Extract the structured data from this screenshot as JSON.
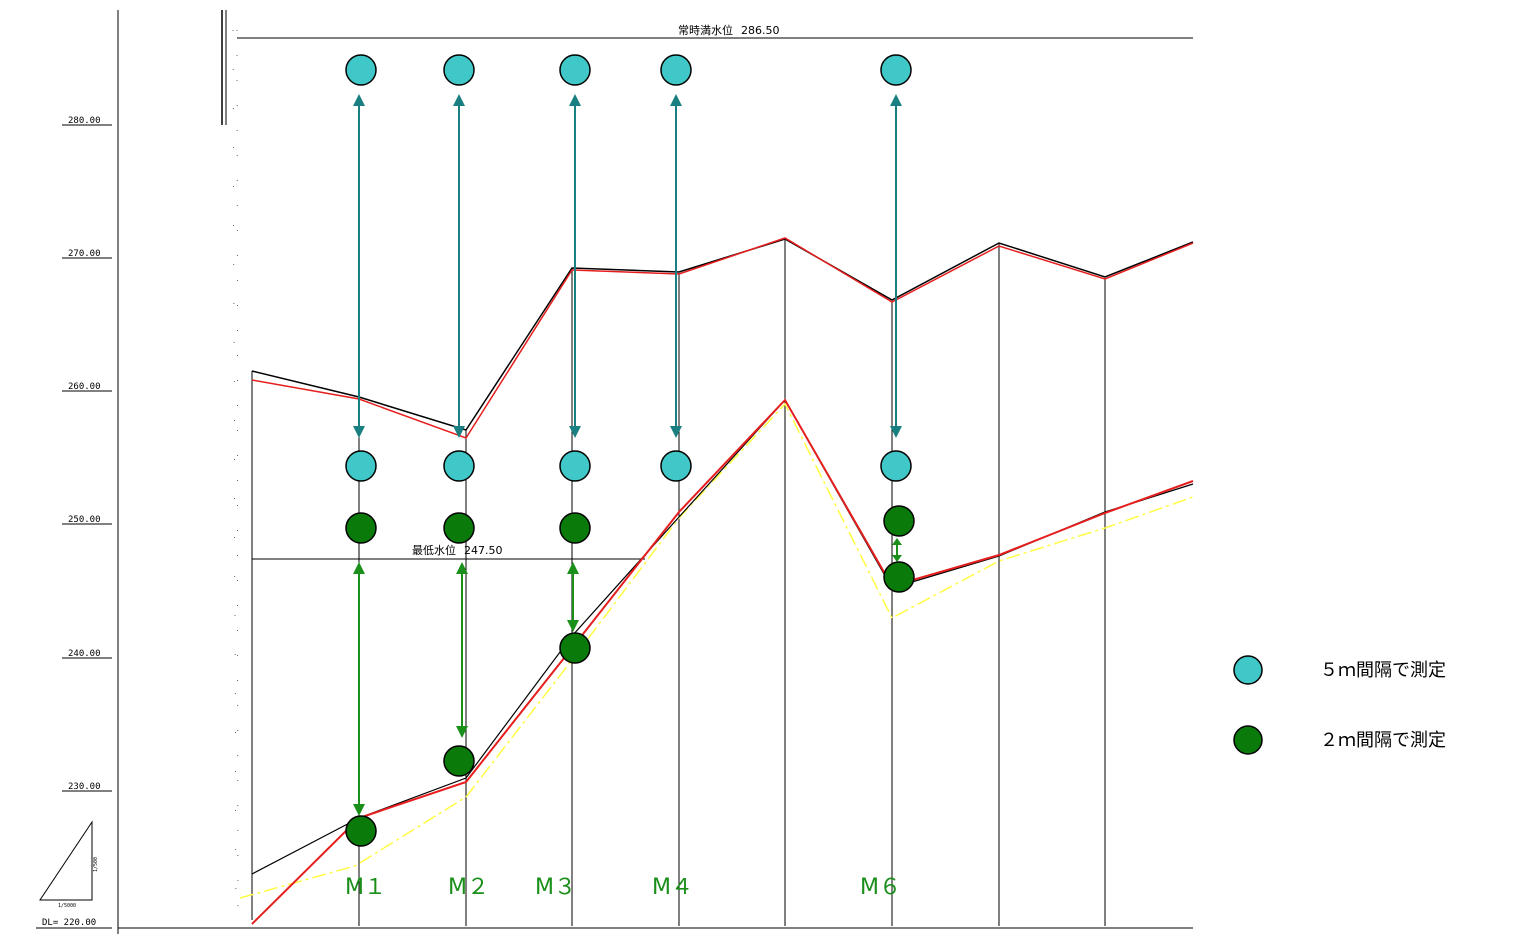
{
  "diagram": {
    "elevation_axis": {
      "ticks": [
        {
          "value": 280,
          "label": "280.00"
        },
        {
          "value": 270,
          "label": "270.00"
        },
        {
          "value": 260,
          "label": "260.00"
        },
        {
          "value": 250,
          "label": "250.00"
        },
        {
          "value": 240,
          "label": "240.00"
        },
        {
          "value": 230,
          "label": "230.00"
        }
      ],
      "datum_label": "DL= 220.00"
    },
    "scale_triangle": {
      "horizontal_label": "1/5000",
      "vertical_label": "1/500"
    },
    "water_levels": {
      "normal_full": {
        "label": "常時満水位",
        "value_text": "286.50",
        "value": 286.5
      },
      "minimum": {
        "label": "最低水位",
        "value_text": "247.50",
        "value": 247.5
      }
    },
    "stations": [
      {
        "label": "M１"
      },
      {
        "label": "M２"
      },
      {
        "label": "M３"
      },
      {
        "label": "M４"
      },
      {
        "label": "M６"
      }
    ],
    "legend": [
      {
        "label": "５ｍ間隔で測定",
        "color": "#40c8c8"
      },
      {
        "label": "２ｍ間隔で測定",
        "color": "#0a7a0a"
      }
    ],
    "colors": {
      "cyan_marker": "#40c8c8",
      "green_marker": "#0a7a0a",
      "cyan_arrow": "#1a7f80",
      "green_arrow": "#1a8f1a",
      "red_profile": "#e61e1e",
      "yellow_profile": "#ffff44",
      "station_text": "#1a8f1a"
    }
  }
}
